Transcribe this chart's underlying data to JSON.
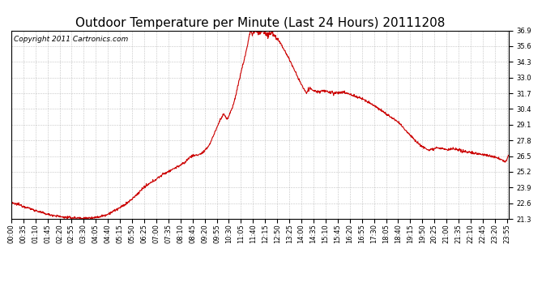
{
  "title": "Outdoor Temperature per Minute (Last 24 Hours) 20111208",
  "copyright_text": "Copyright 2011 Cartronics.com",
  "line_color": "#cc0000",
  "background_color": "#ffffff",
  "plot_bg_color": "#ffffff",
  "grid_color": "#aaaaaa",
  "ylim": [
    21.3,
    36.9
  ],
  "yticks": [
    21.3,
    22.6,
    23.9,
    25.2,
    26.5,
    27.8,
    29.1,
    30.4,
    31.7,
    33.0,
    34.3,
    35.6,
    36.9
  ],
  "xtick_labels": [
    "00:00",
    "00:35",
    "01:10",
    "01:45",
    "02:20",
    "02:55",
    "03:30",
    "04:05",
    "04:40",
    "05:15",
    "05:50",
    "06:25",
    "07:00",
    "07:35",
    "08:10",
    "08:45",
    "09:20",
    "09:55",
    "10:30",
    "11:05",
    "11:40",
    "12:15",
    "12:50",
    "13:25",
    "14:00",
    "14:35",
    "15:10",
    "15:45",
    "16:20",
    "16:55",
    "17:30",
    "18:05",
    "18:40",
    "19:15",
    "19:50",
    "20:25",
    "21:00",
    "21:35",
    "22:10",
    "22:45",
    "23:20",
    "23:55"
  ],
  "title_fontsize": 11,
  "tick_fontsize": 6,
  "copyright_fontsize": 6.5,
  "line_width": 0.8,
  "control_points": [
    [
      0,
      22.6
    ],
    [
      20,
      22.5
    ],
    [
      40,
      22.3
    ],
    [
      60,
      22.1
    ],
    [
      90,
      21.8
    ],
    [
      110,
      21.65
    ],
    [
      130,
      21.55
    ],
    [
      150,
      21.45
    ],
    [
      170,
      21.4
    ],
    [
      190,
      21.38
    ],
    [
      210,
      21.35
    ],
    [
      230,
      21.38
    ],
    [
      250,
      21.45
    ],
    [
      265,
      21.55
    ],
    [
      280,
      21.7
    ],
    [
      300,
      22.0
    ],
    [
      320,
      22.3
    ],
    [
      340,
      22.7
    ],
    [
      360,
      23.2
    ],
    [
      380,
      23.8
    ],
    [
      400,
      24.2
    ],
    [
      420,
      24.6
    ],
    [
      440,
      25.0
    ],
    [
      460,
      25.3
    ],
    [
      480,
      25.6
    ],
    [
      500,
      25.9
    ],
    [
      510,
      26.2
    ],
    [
      520,
      26.5
    ],
    [
      530,
      26.55
    ],
    [
      540,
      26.6
    ],
    [
      550,
      26.7
    ],
    [
      560,
      26.9
    ],
    [
      575,
      27.5
    ],
    [
      590,
      28.5
    ],
    [
      605,
      29.5
    ],
    [
      615,
      30.0
    ],
    [
      620,
      29.8
    ],
    [
      625,
      29.5
    ],
    [
      630,
      29.8
    ],
    [
      640,
      30.5
    ],
    [
      650,
      31.5
    ],
    [
      660,
      32.8
    ],
    [
      670,
      34.0
    ],
    [
      675,
      34.5
    ],
    [
      680,
      35.2
    ],
    [
      685,
      35.8
    ],
    [
      688,
      36.3
    ],
    [
      691,
      36.7
    ],
    [
      693,
      36.9
    ],
    [
      695,
      36.85
    ],
    [
      697,
      36.7
    ],
    [
      700,
      36.6
    ],
    [
      703,
      36.75
    ],
    [
      706,
      36.9
    ],
    [
      710,
      36.85
    ],
    [
      714,
      36.7
    ],
    [
      718,
      36.8
    ],
    [
      722,
      36.85
    ],
    [
      726,
      36.9
    ],
    [
      730,
      36.85
    ],
    [
      735,
      36.75
    ],
    [
      740,
      36.6
    ],
    [
      745,
      36.5
    ],
    [
      750,
      36.6
    ],
    [
      755,
      36.7
    ],
    [
      760,
      36.6
    ],
    [
      765,
      36.4
    ],
    [
      770,
      36.2
    ],
    [
      775,
      36.0
    ],
    [
      780,
      35.8
    ],
    [
      790,
      35.3
    ],
    [
      800,
      34.8
    ],
    [
      810,
      34.2
    ],
    [
      820,
      33.6
    ],
    [
      830,
      33.0
    ],
    [
      840,
      32.4
    ],
    [
      850,
      31.9
    ],
    [
      855,
      31.7
    ],
    [
      860,
      32.0
    ],
    [
      865,
      32.1
    ],
    [
      870,
      32.0
    ],
    [
      875,
      31.9
    ],
    [
      880,
      31.85
    ],
    [
      890,
      31.8
    ],
    [
      900,
      31.9
    ],
    [
      910,
      31.85
    ],
    [
      920,
      31.8
    ],
    [
      930,
      31.75
    ],
    [
      940,
      31.7
    ],
    [
      950,
      31.75
    ],
    [
      960,
      31.8
    ],
    [
      970,
      31.7
    ],
    [
      980,
      31.6
    ],
    [
      990,
      31.5
    ],
    [
      1000,
      31.4
    ],
    [
      1010,
      31.3
    ],
    [
      1020,
      31.2
    ],
    [
      1030,
      31.0
    ],
    [
      1040,
      30.9
    ],
    [
      1050,
      30.7
    ],
    [
      1060,
      30.5
    ],
    [
      1070,
      30.3
    ],
    [
      1080,
      30.1
    ],
    [
      1090,
      29.9
    ],
    [
      1100,
      29.7
    ],
    [
      1110,
      29.5
    ],
    [
      1120,
      29.3
    ],
    [
      1130,
      29.0
    ],
    [
      1140,
      28.7
    ],
    [
      1150,
      28.4
    ],
    [
      1160,
      28.1
    ],
    [
      1170,
      27.8
    ],
    [
      1180,
      27.5
    ],
    [
      1190,
      27.3
    ],
    [
      1200,
      27.1
    ],
    [
      1210,
      27.0
    ],
    [
      1220,
      27.1
    ],
    [
      1230,
      27.2
    ],
    [
      1240,
      27.15
    ],
    [
      1250,
      27.1
    ],
    [
      1260,
      27.0
    ],
    [
      1270,
      27.05
    ],
    [
      1280,
      27.1
    ],
    [
      1290,
      27.0
    ],
    [
      1300,
      26.95
    ],
    [
      1310,
      26.9
    ],
    [
      1320,
      26.85
    ],
    [
      1330,
      26.8
    ],
    [
      1340,
      26.75
    ],
    [
      1350,
      26.7
    ],
    [
      1360,
      26.65
    ],
    [
      1370,
      26.6
    ],
    [
      1380,
      26.55
    ],
    [
      1390,
      26.5
    ],
    [
      1400,
      26.4
    ],
    [
      1410,
      26.3
    ],
    [
      1420,
      26.2
    ],
    [
      1430,
      26.0
    ],
    [
      1435,
      26.2
    ],
    [
      1438,
      26.5
    ],
    [
      1439,
      26.5
    ]
  ]
}
